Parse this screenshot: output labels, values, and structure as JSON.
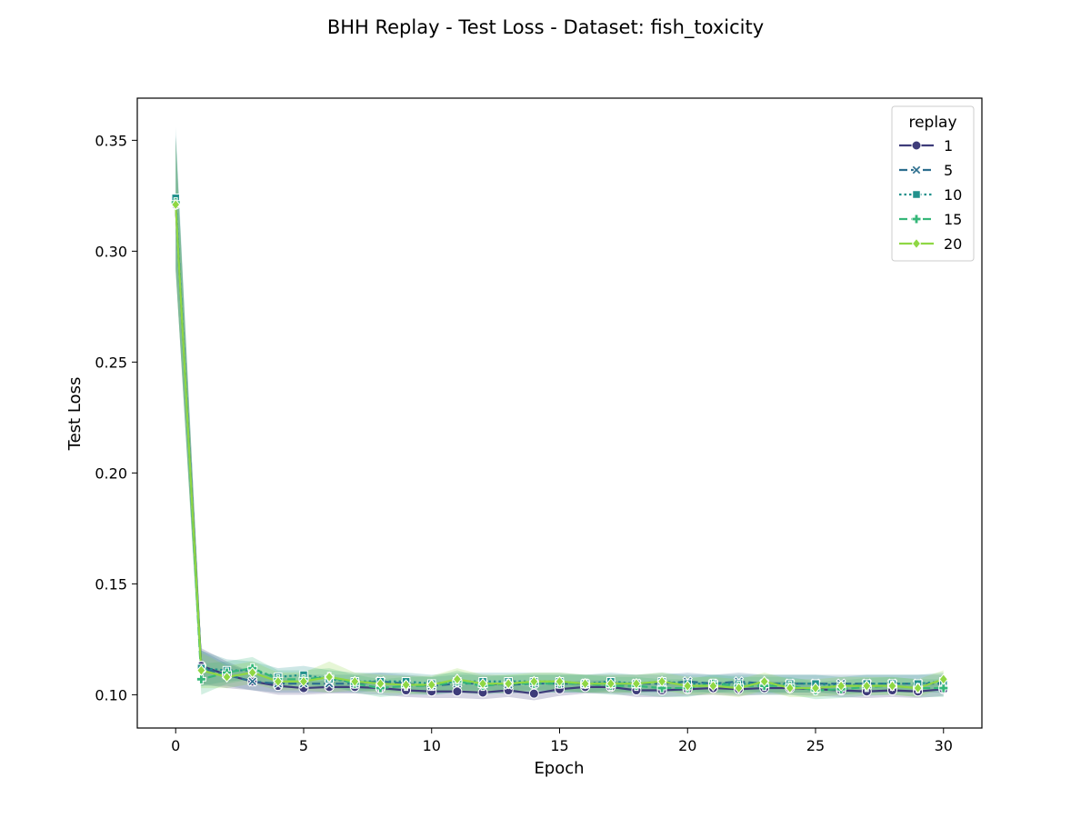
{
  "chart_data": {
    "type": "line",
    "title": "BHH Replay - Test Loss - Dataset: fish_toxicity",
    "xlabel": "Epoch",
    "ylabel": "Test Loss",
    "xlim": [
      -1.5,
      31.5
    ],
    "ylim": [
      0.085,
      0.369
    ],
    "xticks": [
      0,
      5,
      10,
      15,
      20,
      25,
      30
    ],
    "yticks": [
      0.1,
      0.15,
      0.2,
      0.25,
      0.3,
      0.35
    ],
    "grid": false,
    "legend": {
      "title": "replay",
      "placement": "top-right"
    },
    "x": [
      0,
      1,
      2,
      3,
      4,
      5,
      6,
      7,
      8,
      9,
      10,
      11,
      12,
      13,
      14,
      15,
      16,
      17,
      18,
      19,
      20,
      21,
      22,
      23,
      24,
      25,
      26,
      27,
      28,
      29,
      30
    ],
    "series": [
      {
        "name": "1",
        "color": "#3e3c7a",
        "dash": "solid",
        "marker": "circle",
        "values": [
          0.321,
          0.113,
          0.109,
          0.106,
          0.104,
          0.103,
          0.1035,
          0.1035,
          0.103,
          0.102,
          0.1015,
          0.1015,
          0.101,
          0.102,
          0.1005,
          0.1025,
          0.1035,
          0.1035,
          0.102,
          0.102,
          0.1025,
          0.103,
          0.1025,
          0.103,
          0.103,
          0.1025,
          0.102,
          0.1015,
          0.102,
          0.1015,
          0.1025
        ],
        "band": [
          0.03,
          0.008,
          0.006,
          0.004,
          0.004,
          0.003,
          0.003,
          0.003,
          0.003,
          0.003,
          0.003,
          0.003,
          0.003,
          0.003,
          0.003,
          0.003,
          0.003,
          0.003,
          0.003,
          0.003,
          0.003,
          0.003,
          0.003,
          0.003,
          0.003,
          0.003,
          0.003,
          0.003,
          0.003,
          0.003,
          0.003
        ]
      },
      {
        "name": "5",
        "color": "#2c6e8e",
        "dash": "dashed",
        "marker": "x",
        "values": [
          0.322,
          0.112,
          0.109,
          0.106,
          0.105,
          0.105,
          0.105,
          0.105,
          0.106,
          0.105,
          0.104,
          0.105,
          0.105,
          0.1045,
          0.105,
          0.105,
          0.105,
          0.105,
          0.105,
          0.105,
          0.106,
          0.105,
          0.106,
          0.105,
          0.105,
          0.105,
          0.105,
          0.105,
          0.105,
          0.105,
          0.105
        ],
        "band": [
          0.03,
          0.008,
          0.005,
          0.004,
          0.004,
          0.004,
          0.004,
          0.004,
          0.004,
          0.004,
          0.004,
          0.004,
          0.004,
          0.004,
          0.004,
          0.004,
          0.004,
          0.004,
          0.004,
          0.004,
          0.004,
          0.004,
          0.004,
          0.004,
          0.004,
          0.004,
          0.004,
          0.004,
          0.004,
          0.004,
          0.004
        ]
      },
      {
        "name": "10",
        "color": "#21918c",
        "dash": "dotted",
        "marker": "square",
        "values": [
          0.324,
          0.112,
          0.111,
          0.111,
          0.108,
          0.109,
          0.107,
          0.106,
          0.106,
          0.106,
          0.105,
          0.106,
          0.106,
          0.106,
          0.106,
          0.106,
          0.105,
          0.106,
          0.105,
          0.106,
          0.105,
          0.105,
          0.105,
          0.105,
          0.105,
          0.105,
          0.104,
          0.105,
          0.105,
          0.105,
          0.106
        ],
        "band": [
          0.032,
          0.008,
          0.005,
          0.004,
          0.004,
          0.004,
          0.004,
          0.004,
          0.004,
          0.004,
          0.004,
          0.004,
          0.004,
          0.004,
          0.004,
          0.004,
          0.004,
          0.004,
          0.004,
          0.004,
          0.004,
          0.004,
          0.004,
          0.004,
          0.004,
          0.004,
          0.004,
          0.004,
          0.004,
          0.004,
          0.004
        ]
      },
      {
        "name": "15",
        "color": "#35b779",
        "dash": "dashed",
        "marker": "plus",
        "values": [
          0.322,
          0.107,
          0.11,
          0.112,
          0.107,
          0.107,
          0.108,
          0.105,
          0.103,
          0.104,
          0.104,
          0.106,
          0.104,
          0.105,
          0.105,
          0.105,
          0.105,
          0.104,
          0.104,
          0.103,
          0.103,
          0.105,
          0.104,
          0.104,
          0.104,
          0.102,
          0.1025,
          0.1035,
          0.104,
          0.103,
          0.103
        ],
        "band": [
          0.03,
          0.007,
          0.005,
          0.005,
          0.004,
          0.004,
          0.004,
          0.004,
          0.004,
          0.004,
          0.004,
          0.005,
          0.004,
          0.004,
          0.004,
          0.004,
          0.004,
          0.004,
          0.004,
          0.004,
          0.004,
          0.004,
          0.004,
          0.004,
          0.004,
          0.004,
          0.004,
          0.004,
          0.004,
          0.004,
          0.004
        ]
      },
      {
        "name": "20",
        "color": "#8fd744",
        "dash": "solid",
        "marker": "diamond",
        "values": [
          0.321,
          0.111,
          0.108,
          0.11,
          0.106,
          0.106,
          0.108,
          0.106,
          0.105,
          0.1045,
          0.1045,
          0.107,
          0.105,
          0.105,
          0.106,
          0.106,
          0.105,
          0.105,
          0.105,
          0.106,
          0.104,
          0.104,
          0.103,
          0.106,
          0.103,
          0.103,
          0.104,
          0.104,
          0.104,
          0.103,
          0.107
        ],
        "band": [
          0.03,
          0.008,
          0.005,
          0.005,
          0.004,
          0.004,
          0.007,
          0.004,
          0.004,
          0.004,
          0.004,
          0.005,
          0.004,
          0.004,
          0.004,
          0.004,
          0.004,
          0.004,
          0.004,
          0.004,
          0.004,
          0.004,
          0.004,
          0.004,
          0.004,
          0.004,
          0.004,
          0.004,
          0.004,
          0.004,
          0.004
        ]
      }
    ]
  }
}
